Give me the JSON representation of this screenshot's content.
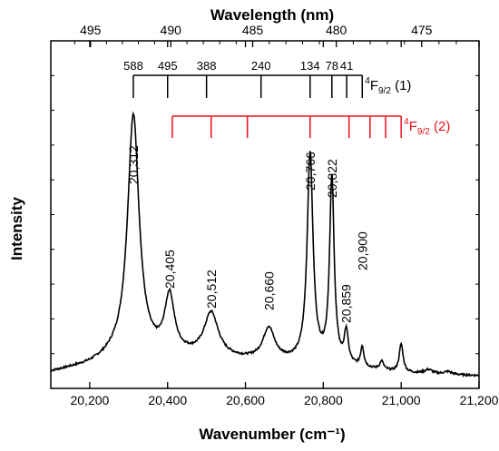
{
  "chart_data": {
    "type": "line",
    "title": "",
    "xlabel": "Wavenumber (cm⁻¹)",
    "ylabel": "Intensity",
    "top_xlabel": "Wavelength (nm)",
    "xlim": [
      20100,
      21200
    ],
    "ylim": [
      0,
      1.0
    ],
    "x_ticks": [
      20200,
      20400,
      20600,
      20800,
      21000,
      21200
    ],
    "x_tick_labels": [
      "20,200",
      "20,400",
      "20,600",
      "20,800",
      "21,000",
      "21,200"
    ],
    "top_ticks_nm": [
      495,
      490,
      485,
      480,
      475
    ],
    "top_tick_labels": [
      "495",
      "490",
      "485",
      "480",
      "475"
    ],
    "grid": false,
    "color": "#000000",
    "peaks": [
      {
        "x": 20312,
        "label": "20,312",
        "height": 0.72,
        "width": 18
      },
      {
        "x": 20405,
        "label": "20,405",
        "height": 0.17,
        "width": 15
      },
      {
        "x": 20512,
        "label": "20,512",
        "height": 0.13,
        "width": 22
      },
      {
        "x": 20660,
        "label": "20,660",
        "height": 0.095,
        "width": 18
      },
      {
        "x": 20766,
        "label": "20,766",
        "height": 0.62,
        "width": 9
      },
      {
        "x": 20822,
        "label": "20,822",
        "height": 0.55,
        "width": 7
      },
      {
        "x": 20859,
        "label": "20,859",
        "height": 0.095,
        "width": 6
      },
      {
        "x": 20900,
        "label": "20,900",
        "height": 0.06,
        "width": 5
      },
      {
        "x": 20950,
        "label": "",
        "height": 0.025,
        "width": 6
      },
      {
        "x": 21000,
        "label": "",
        "height": 0.085,
        "width": 6
      },
      {
        "x": 21070,
        "label": "",
        "height": 0.012,
        "width": 12
      },
      {
        "x": 21120,
        "label": "",
        "height": 0.008,
        "width": 12
      }
    ],
    "baseline": [
      {
        "x": 20100,
        "y": 0.015
      },
      {
        "x": 20200,
        "y": 0.035
      },
      {
        "x": 20260,
        "y": 0.055
      },
      {
        "x": 20450,
        "y": 0.06
      },
      {
        "x": 20600,
        "y": 0.05
      },
      {
        "x": 20700,
        "y": 0.045
      },
      {
        "x": 20800,
        "y": 0.04
      },
      {
        "x": 20900,
        "y": 0.025
      },
      {
        "x": 21000,
        "y": 0.012
      },
      {
        "x": 21200,
        "y": 0.005
      }
    ],
    "ladders": [
      {
        "term": "4F9/2",
        "term_sup": "4",
        "term_main": "F",
        "term_sub": "9/2",
        "term_suffix": " (1)",
        "color": "#000000",
        "lines_x": [
          20312,
          20400,
          20500,
          20640,
          20766,
          20822,
          20860,
          20900
        ],
        "labels": [
          "588",
          "495",
          "388",
          "240",
          "134",
          "78",
          "41",
          ""
        ]
      },
      {
        "term": "4F9/2",
        "term_sup": "4",
        "term_main": "F",
        "term_sub": "9/2",
        "term_suffix": " (2)",
        "color": "#e8101c",
        "lines_x": [
          20412,
          20512,
          20605,
          20766,
          20866,
          20920,
          20960,
          21000
        ],
        "labels": []
      }
    ]
  }
}
